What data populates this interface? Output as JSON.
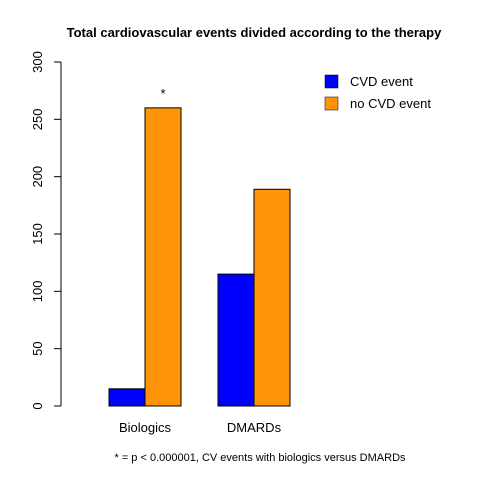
{
  "chart_data": {
    "type": "bar",
    "title": "Total cardiovascular events divided according to the therapy",
    "xlabel": "",
    "ylabel": "",
    "categories": [
      "Biologics",
      "DMARDs"
    ],
    "series": [
      {
        "name": "CVD event",
        "values": [
          15,
          115
        ],
        "color": "#0000ff"
      },
      {
        "name": "no CVD event",
        "values": [
          260,
          189
        ],
        "color": "#ff9408"
      }
    ],
    "ylim": [
      0,
      300
    ],
    "yticks": [
      0,
      50,
      100,
      150,
      200,
      250,
      300
    ],
    "grid": false,
    "legend_position": "top-right",
    "annotations": [
      {
        "text": "*",
        "category": "Biologics",
        "series": "no CVD event"
      }
    ],
    "footnote": "* = p < 0.000001, CV events with biologics versus DMARDs"
  }
}
